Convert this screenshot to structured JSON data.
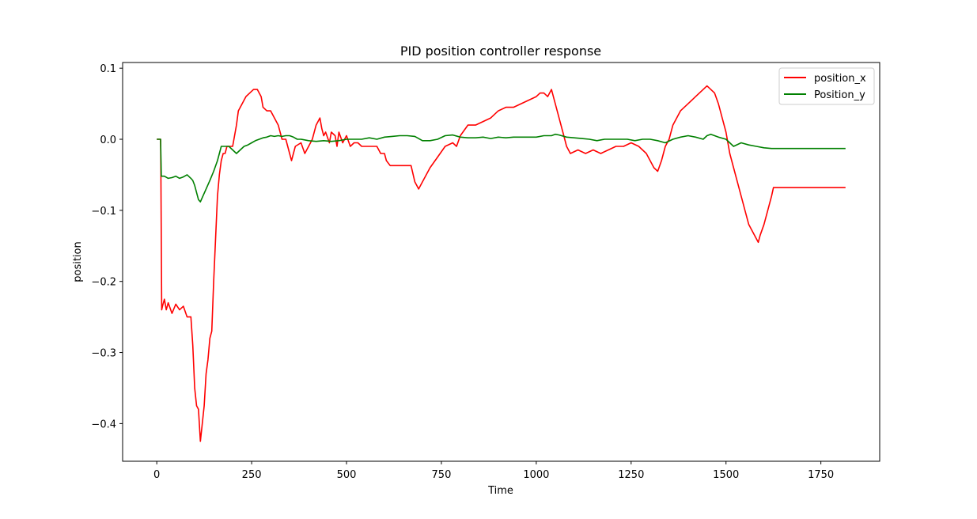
{
  "chart_data": {
    "type": "line",
    "title": "PID position controller response",
    "xlabel": "Time",
    "ylabel": "position",
    "xlim": [
      -90,
      1905
    ],
    "ylim": [
      -0.453,
      0.108
    ],
    "xticks": [
      0,
      250,
      500,
      750,
      1000,
      1250,
      1500,
      1750
    ],
    "yticks": [
      0.1,
      0.0,
      -0.1,
      -0.2,
      -0.3,
      -0.4
    ],
    "ytick_labels": [
      "0.1",
      "0.0",
      "−0.1",
      "−0.2",
      "−0.3",
      "−0.4"
    ],
    "grid": false,
    "legend_position": "top-right",
    "series": [
      {
        "name": "position_x",
        "color": "#ff0000",
        "x": [
          0,
          10,
          11,
          13,
          15,
          20,
          25,
          30,
          40,
          50,
          60,
          70,
          80,
          90,
          95,
          100,
          105,
          110,
          115,
          120,
          125,
          130,
          135,
          140,
          145,
          150,
          155,
          160,
          165,
          170,
          175,
          180,
          185,
          190,
          200,
          210,
          215,
          225,
          235,
          245,
          255,
          265,
          275,
          280,
          290,
          300,
          310,
          320,
          330,
          340,
          350,
          355,
          365,
          380,
          390,
          400,
          410,
          420,
          430,
          435,
          440,
          445,
          455,
          460,
          470,
          475,
          480,
          490,
          500,
          510,
          520,
          530,
          540,
          550,
          560,
          570,
          580,
          590,
          600,
          605,
          615,
          630,
          650,
          670,
          680,
          690,
          700,
          720,
          740,
          760,
          780,
          790,
          800,
          820,
          840,
          860,
          880,
          900,
          920,
          940,
          960,
          980,
          1000,
          1010,
          1020,
          1030,
          1040,
          1050,
          1060,
          1070,
          1080,
          1090,
          1110,
          1130,
          1150,
          1170,
          1190,
          1210,
          1230,
          1250,
          1270,
          1290,
          1300,
          1310,
          1320,
          1330,
          1340,
          1350,
          1360,
          1370,
          1380,
          1400,
          1420,
          1440,
          1450,
          1460,
          1470,
          1480,
          1490,
          1500,
          1510,
          1520,
          1530,
          1540,
          1550,
          1560,
          1570,
          1580,
          1585,
          1590,
          1600,
          1610,
          1620,
          1625,
          1700,
          1815
        ],
        "y": [
          0.0,
          0.0,
          -0.05,
          -0.24,
          -0.235,
          -0.225,
          -0.24,
          -0.23,
          -0.245,
          -0.232,
          -0.24,
          -0.235,
          -0.25,
          -0.25,
          -0.29,
          -0.35,
          -0.375,
          -0.38,
          -0.425,
          -0.4,
          -0.375,
          -0.33,
          -0.31,
          -0.28,
          -0.27,
          -0.2,
          -0.14,
          -0.08,
          -0.05,
          -0.03,
          -0.02,
          -0.02,
          -0.01,
          -0.01,
          -0.01,
          0.02,
          0.04,
          0.05,
          0.06,
          0.065,
          0.07,
          0.07,
          0.06,
          0.045,
          0.04,
          0.04,
          0.03,
          0.02,
          0.0,
          0.0,
          -0.02,
          -0.03,
          -0.01,
          -0.005,
          -0.02,
          -0.01,
          0.0,
          0.02,
          0.03,
          0.015,
          0.005,
          0.01,
          -0.005,
          0.01,
          0.005,
          -0.01,
          0.01,
          -0.005,
          0.005,
          -0.01,
          -0.005,
          -0.005,
          -0.01,
          -0.01,
          -0.01,
          -0.01,
          -0.01,
          -0.02,
          -0.02,
          -0.03,
          -0.037,
          -0.037,
          -0.037,
          -0.037,
          -0.06,
          -0.07,
          -0.06,
          -0.04,
          -0.025,
          -0.01,
          -0.005,
          -0.01,
          0.005,
          0.02,
          0.02,
          0.025,
          0.03,
          0.04,
          0.045,
          0.045,
          0.05,
          0.055,
          0.06,
          0.065,
          0.065,
          0.06,
          0.07,
          0.05,
          0.03,
          0.01,
          -0.01,
          -0.02,
          -0.015,
          -0.02,
          -0.015,
          -0.02,
          -0.015,
          -0.01,
          -0.01,
          -0.005,
          -0.01,
          -0.02,
          -0.03,
          -0.04,
          -0.045,
          -0.03,
          -0.01,
          0.0,
          0.02,
          0.03,
          0.04,
          0.05,
          0.06,
          0.07,
          0.075,
          0.07,
          0.065,
          0.05,
          0.03,
          0.01,
          -0.02,
          -0.04,
          -0.06,
          -0.08,
          -0.1,
          -0.12,
          -0.13,
          -0.14,
          -0.145,
          -0.135,
          -0.12,
          -0.1,
          -0.08,
          -0.068,
          -0.068,
          -0.068
        ]
      },
      {
        "name": "Position_y",
        "color": "#008000",
        "x": [
          0,
          10,
          12,
          20,
          30,
          40,
          50,
          60,
          70,
          80,
          90,
          95,
          100,
          105,
          110,
          115,
          120,
          130,
          140,
          150,
          160,
          170,
          180,
          190,
          200,
          210,
          220,
          230,
          240,
          250,
          260,
          270,
          280,
          290,
          300,
          310,
          320,
          330,
          340,
          350,
          360,
          370,
          380,
          400,
          420,
          440,
          460,
          480,
          500,
          520,
          540,
          560,
          580,
          600,
          620,
          640,
          660,
          680,
          700,
          720,
          740,
          760,
          780,
          800,
          820,
          840,
          860,
          880,
          900,
          920,
          940,
          960,
          980,
          1000,
          1020,
          1040,
          1050,
          1060,
          1080,
          1100,
          1120,
          1140,
          1160,
          1180,
          1200,
          1220,
          1240,
          1260,
          1280,
          1300,
          1320,
          1340,
          1360,
          1380,
          1400,
          1420,
          1440,
          1450,
          1460,
          1480,
          1500,
          1510,
          1520,
          1540,
          1560,
          1580,
          1600,
          1620,
          1640,
          1700,
          1815
        ],
        "y": [
          0.0,
          0.0,
          -0.052,
          -0.052,
          -0.055,
          -0.054,
          -0.052,
          -0.055,
          -0.053,
          -0.05,
          -0.055,
          -0.058,
          -0.065,
          -0.075,
          -0.085,
          -0.088,
          -0.082,
          -0.07,
          -0.058,
          -0.045,
          -0.03,
          -0.01,
          -0.01,
          -0.01,
          -0.015,
          -0.02,
          -0.015,
          -0.01,
          -0.008,
          -0.005,
          -0.002,
          0.0,
          0.002,
          0.003,
          0.005,
          0.004,
          0.005,
          0.004,
          0.005,
          0.005,
          0.003,
          0.0,
          0.0,
          -0.002,
          -0.003,
          -0.002,
          -0.003,
          -0.002,
          0.0,
          0.0,
          0.0,
          0.002,
          0.0,
          0.003,
          0.004,
          0.005,
          0.005,
          0.004,
          -0.002,
          -0.002,
          0.0,
          0.005,
          0.006,
          0.003,
          0.002,
          0.002,
          0.003,
          0.001,
          0.003,
          0.002,
          0.003,
          0.003,
          0.003,
          0.003,
          0.005,
          0.005,
          0.007,
          0.006,
          0.003,
          0.002,
          0.001,
          0.0,
          -0.002,
          0.0,
          0.0,
          0.0,
          0.0,
          -0.002,
          0.0,
          0.0,
          -0.002,
          -0.005,
          0.0,
          0.003,
          0.005,
          0.003,
          0.0,
          0.005,
          0.007,
          0.003,
          0.0,
          -0.005,
          -0.01,
          -0.005,
          -0.008,
          -0.01,
          -0.012,
          -0.013,
          -0.013,
          -0.013,
          -0.013
        ]
      }
    ]
  }
}
